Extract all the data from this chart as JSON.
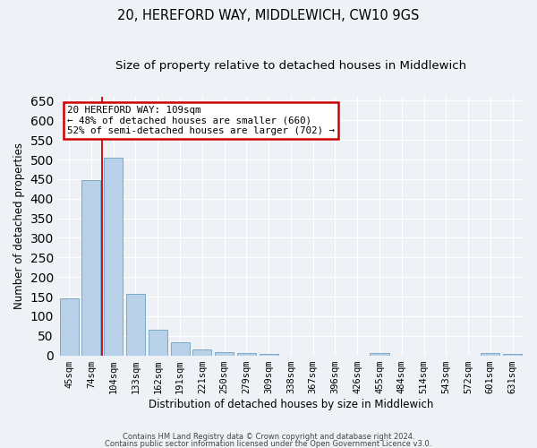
{
  "title": "20, HEREFORD WAY, MIDDLEWICH, CW10 9GS",
  "subtitle": "Size of property relative to detached houses in Middlewich",
  "xlabel": "Distribution of detached houses by size in Middlewich",
  "ylabel": "Number of detached properties",
  "categories": [
    "45sqm",
    "74sqm",
    "104sqm",
    "133sqm",
    "162sqm",
    "191sqm",
    "221sqm",
    "250sqm",
    "279sqm",
    "309sqm",
    "338sqm",
    "367sqm",
    "396sqm",
    "426sqm",
    "455sqm",
    "484sqm",
    "514sqm",
    "543sqm",
    "572sqm",
    "601sqm",
    "631sqm"
  ],
  "values": [
    145,
    447,
    505,
    157,
    65,
    33,
    14,
    8,
    5,
    4,
    0,
    0,
    0,
    0,
    6,
    0,
    0,
    0,
    0,
    5,
    3
  ],
  "bar_color": "#b8d0e8",
  "bar_edge_color": "#7aaac8",
  "red_line_x": 1.5,
  "ylim_max": 660,
  "yticks": [
    0,
    50,
    100,
    150,
    200,
    250,
    300,
    350,
    400,
    450,
    500,
    550,
    600,
    650
  ],
  "annotation_title": "20 HEREFORD WAY: 109sqm",
  "annotation_line1": "← 48% of detached houses are smaller (660)",
  "annotation_line2": "52% of semi-detached houses are larger (702) →",
  "red_color": "#cc0000",
  "footnote1": "Contains HM Land Registry data © Crown copyright and database right 2024.",
  "footnote2": "Contains public sector information licensed under the Open Government Licence v3.0.",
  "bg_color": "#eef2f7",
  "grid_color": "#ffffff",
  "title_fontsize": 10.5,
  "subtitle_fontsize": 9.5,
  "ylabel_fontsize": 8.5,
  "xlabel_fontsize": 8.5,
  "tick_fontsize": 7.5,
  "annot_fontsize": 7.8,
  "footnote_fontsize": 6.0
}
